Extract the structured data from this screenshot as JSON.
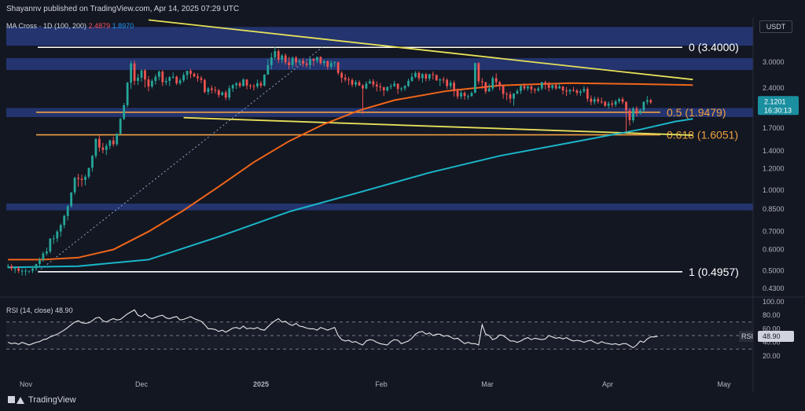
{
  "header": {
    "text": "Shayannv published on TradingView.com, Apr 14, 2025 07:29 UTC",
    "currency": "USDT"
  },
  "legend": {
    "ma_label": "MA Cross · 1D (100, 200)",
    "ma100_value": "2.4879",
    "ma200_value": "1.8970",
    "rsi_label": "RSI (14, close)",
    "rsi_value": "48.90"
  },
  "footer": {
    "brand": "TradingView"
  },
  "colors": {
    "background": "#131722",
    "up": "#26a69a",
    "down": "#ef5350",
    "ma100": "#f0661a",
    "ma200": "#1ab5c8",
    "fib": "#f0a040",
    "trend": "#e6e05a",
    "zone": "#2a3f8a"
  },
  "chart_data": {
    "type": "candlestick",
    "x_labels": [
      "Nov",
      "Dec",
      "2025",
      "Feb",
      "Mar",
      "Apr",
      "May"
    ],
    "y_ticks": [
      "3.0000",
      "2.4000",
      "1.7000",
      "1.4000",
      "1.2000",
      "1.0000",
      "0.8500",
      "0.7000",
      "0.6000",
      "0.5000",
      "0.4300"
    ],
    "y_scale": "log",
    "y_range": [
      0.41,
      4.4
    ],
    "last_price": "2.1201",
    "countdown": "16:30:13",
    "fib_levels": [
      {
        "label": "0 (3.4000)",
        "price": 3.4,
        "color": "white"
      },
      {
        "label": "0.5 (1.9479)",
        "price": 1.9479,
        "color": "orange"
      },
      {
        "label": "0.618 (1.6051)",
        "price": 1.6051,
        "color": "orange"
      },
      {
        "label": "1 (0.4957)",
        "price": 0.4957,
        "color": "white"
      }
    ],
    "fib_price_tags": [
      "1.9479",
      "1.6051"
    ],
    "support_zones": [
      {
        "low": 3.45,
        "high": 4.05
      },
      {
        "low": 2.8,
        "high": 3.1
      },
      {
        "low": 1.87,
        "high": 2.02
      },
      {
        "low": 0.84,
        "high": 0.89
      }
    ],
    "ma100": [
      [
        0,
        0.55
      ],
      [
        10,
        0.55
      ],
      [
        20,
        0.56
      ],
      [
        30,
        0.6
      ],
      [
        40,
        0.7
      ],
      [
        50,
        0.84
      ],
      [
        60,
        1.03
      ],
      [
        70,
        1.27
      ],
      [
        80,
        1.52
      ],
      [
        90,
        1.76
      ],
      [
        100,
        1.98
      ],
      [
        110,
        2.16
      ],
      [
        125,
        2.34
      ],
      [
        140,
        2.45
      ],
      [
        160,
        2.5
      ],
      [
        180,
        2.48
      ],
      [
        195,
        2.46
      ]
    ],
    "ma200": [
      [
        0,
        0.515
      ],
      [
        20,
        0.52
      ],
      [
        40,
        0.55
      ],
      [
        60,
        0.67
      ],
      [
        80,
        0.83
      ],
      [
        100,
        0.98
      ],
      [
        120,
        1.16
      ],
      [
        140,
        1.34
      ],
      [
        160,
        1.5
      ],
      [
        180,
        1.68
      ],
      [
        190,
        1.8
      ],
      [
        195,
        1.84
      ]
    ],
    "trendlines": [
      {
        "from": [
          40,
          4.3
        ],
        "to": [
          195,
          2.58
        ]
      },
      {
        "from": [
          50,
          1.86
        ],
        "to": [
          195,
          1.6
        ]
      }
    ],
    "candles": [
      [
        0.52,
        0.52,
        0.53,
        0.51
      ],
      [
        0.52,
        0.51,
        0.53,
        0.5
      ],
      [
        0.51,
        0.51,
        0.52,
        0.49
      ],
      [
        0.51,
        0.5,
        0.52,
        0.49
      ],
      [
        0.5,
        0.5,
        0.51,
        0.48
      ],
      [
        0.5,
        0.5,
        0.51,
        0.48
      ],
      [
        0.5,
        0.5,
        0.5,
        0.49
      ],
      [
        0.5,
        0.51,
        0.52,
        0.49
      ],
      [
        0.51,
        0.53,
        0.53,
        0.5
      ],
      [
        0.53,
        0.55,
        0.56,
        0.52
      ],
      [
        0.55,
        0.58,
        0.59,
        0.54
      ],
      [
        0.58,
        0.59,
        0.61,
        0.57
      ],
      [
        0.59,
        0.66,
        0.66,
        0.58
      ],
      [
        0.66,
        0.66,
        0.68,
        0.63
      ],
      [
        0.66,
        0.7,
        0.71,
        0.64
      ],
      [
        0.7,
        0.74,
        0.75,
        0.67
      ],
      [
        0.74,
        0.8,
        0.81,
        0.72
      ],
      [
        0.8,
        0.87,
        0.88,
        0.77
      ],
      [
        0.87,
        0.98,
        0.98,
        0.86
      ],
      [
        0.98,
        1.11,
        1.12,
        0.96
      ],
      [
        1.11,
        1.1,
        1.15,
        1.03
      ],
      [
        1.1,
        1.09,
        1.14,
        1.03
      ],
      [
        1.09,
        1.12,
        1.14,
        1.04
      ],
      [
        1.12,
        1.21,
        1.21,
        1.1
      ],
      [
        1.21,
        1.34,
        1.35,
        1.17
      ],
      [
        1.34,
        1.55,
        1.56,
        1.31
      ],
      [
        1.55,
        1.44,
        1.6,
        1.39
      ],
      [
        1.44,
        1.41,
        1.5,
        1.37
      ],
      [
        1.41,
        1.46,
        1.49,
        1.35
      ],
      [
        1.46,
        1.53,
        1.54,
        1.42
      ],
      [
        1.53,
        1.48,
        1.58,
        1.45
      ],
      [
        1.48,
        1.62,
        1.63,
        1.46
      ],
      [
        1.62,
        1.84,
        1.86,
        1.61
      ],
      [
        1.84,
        2.07,
        2.11,
        1.82
      ],
      [
        2.07,
        2.51,
        2.53,
        2.03
      ],
      [
        2.51,
        2.96,
        3.03,
        2.38
      ],
      [
        2.96,
        2.55,
        3.04,
        2.46
      ],
      [
        2.55,
        2.62,
        2.71,
        2.46
      ],
      [
        2.62,
        2.79,
        2.81,
        2.53
      ],
      [
        2.79,
        2.58,
        2.82,
        2.41
      ],
      [
        2.58,
        2.43,
        2.66,
        2.33
      ],
      [
        2.43,
        2.55,
        2.59,
        2.39
      ],
      [
        2.55,
        2.64,
        2.7,
        2.47
      ],
      [
        2.64,
        2.76,
        2.79,
        2.56
      ],
      [
        2.76,
        2.52,
        2.8,
        2.44
      ],
      [
        2.52,
        2.55,
        2.63,
        2.46
      ],
      [
        2.55,
        2.63,
        2.66,
        2.44
      ],
      [
        2.63,
        2.64,
        2.74,
        2.6
      ],
      [
        2.64,
        2.5,
        2.67,
        2.46
      ],
      [
        2.5,
        2.56,
        2.61,
        2.46
      ],
      [
        2.56,
        2.68,
        2.74,
        2.52
      ],
      [
        2.68,
        2.78,
        2.78,
        2.58
      ],
      [
        2.78,
        2.71,
        2.83,
        2.61
      ],
      [
        2.71,
        2.65,
        2.74,
        2.63
      ],
      [
        2.65,
        2.61,
        2.72,
        2.53
      ],
      [
        2.61,
        2.57,
        2.66,
        2.5
      ],
      [
        2.57,
        2.32,
        2.6,
        2.29
      ],
      [
        2.32,
        2.39,
        2.42,
        2.26
      ],
      [
        2.39,
        2.36,
        2.45,
        2.29
      ],
      [
        2.36,
        2.35,
        2.43,
        2.29
      ],
      [
        2.35,
        2.26,
        2.38,
        2.21
      ],
      [
        2.26,
        2.31,
        2.33,
        2.24
      ],
      [
        2.31,
        2.21,
        2.35,
        2.16
      ],
      [
        2.21,
        2.39,
        2.45,
        2.16
      ],
      [
        2.39,
        2.46,
        2.48,
        2.32
      ],
      [
        2.46,
        2.5,
        2.52,
        2.38
      ],
      [
        2.5,
        2.44,
        2.54,
        2.4
      ],
      [
        2.44,
        2.58,
        2.61,
        2.43
      ],
      [
        2.58,
        2.45,
        2.59,
        2.37
      ],
      [
        2.45,
        2.44,
        2.48,
        2.38
      ],
      [
        2.44,
        2.43,
        2.48,
        2.35
      ],
      [
        2.43,
        2.5,
        2.58,
        2.39
      ],
      [
        2.5,
        2.45,
        2.55,
        2.4
      ],
      [
        2.45,
        2.69,
        2.7,
        2.43
      ],
      [
        2.69,
        2.92,
        3.07,
        2.69
      ],
      [
        2.92,
        3.12,
        3.25,
        2.82
      ],
      [
        3.12,
        3.29,
        3.41,
        3.06
      ],
      [
        3.29,
        3.06,
        3.35,
        2.97
      ],
      [
        3.06,
        3.17,
        3.21,
        2.97
      ],
      [
        3.17,
        2.99,
        3.23,
        2.93
      ],
      [
        2.99,
        2.92,
        3.13,
        2.82
      ],
      [
        2.92,
        3.11,
        3.15,
        2.83
      ],
      [
        3.11,
        2.99,
        3.16,
        2.88
      ],
      [
        2.99,
        3.03,
        3.08,
        2.93
      ],
      [
        3.03,
        2.96,
        3.1,
        2.88
      ],
      [
        2.96,
        2.92,
        3.03,
        2.86
      ],
      [
        2.92,
        3.08,
        3.1,
        2.82
      ],
      [
        3.08,
        3.03,
        3.1,
        2.9
      ],
      [
        3.03,
        3.13,
        3.14,
        2.97
      ],
      [
        3.13,
        2.97,
        3.15,
        2.93
      ],
      [
        2.97,
        3.02,
        3.06,
        2.89
      ],
      [
        3.02,
        2.88,
        3.04,
        2.81
      ],
      [
        2.88,
        2.97,
        3.04,
        2.82
      ],
      [
        2.97,
        2.99,
        3.03,
        2.87
      ],
      [
        2.99,
        2.73,
        3.01,
        2.68
      ],
      [
        2.73,
        2.62,
        2.77,
        2.51
      ],
      [
        2.62,
        2.58,
        2.7,
        2.53
      ],
      [
        2.58,
        2.57,
        2.64,
        2.46
      ],
      [
        2.57,
        2.47,
        2.61,
        2.42
      ],
      [
        2.47,
        2.52,
        2.57,
        2.42
      ],
      [
        2.52,
        2.45,
        2.56,
        2.44
      ],
      [
        2.45,
        2.39,
        2.48,
        1.92
      ],
      [
        2.39,
        2.49,
        2.54,
        2.37
      ],
      [
        2.49,
        2.54,
        2.59,
        2.49
      ],
      [
        2.54,
        2.47,
        2.59,
        2.41
      ],
      [
        2.47,
        2.43,
        2.54,
        2.33
      ],
      [
        2.43,
        2.41,
        2.5,
        2.33
      ],
      [
        2.41,
        2.35,
        2.43,
        2.24
      ],
      [
        2.35,
        2.42,
        2.43,
        2.32
      ],
      [
        2.42,
        2.44,
        2.49,
        2.37
      ],
      [
        2.44,
        2.49,
        2.55,
        2.42
      ],
      [
        2.49,
        2.38,
        2.49,
        2.28
      ],
      [
        2.38,
        2.39,
        2.42,
        2.33
      ],
      [
        2.39,
        2.44,
        2.46,
        2.34
      ],
      [
        2.44,
        2.55,
        2.6,
        2.42
      ],
      [
        2.55,
        2.64,
        2.73,
        2.53
      ],
      [
        2.64,
        2.73,
        2.77,
        2.61
      ],
      [
        2.73,
        2.61,
        2.77,
        2.55
      ],
      [
        2.61,
        2.7,
        2.73,
        2.51
      ],
      [
        2.7,
        2.6,
        2.73,
        2.54
      ],
      [
        2.6,
        2.7,
        2.71,
        2.55
      ],
      [
        2.7,
        2.68,
        2.76,
        2.58
      ],
      [
        2.68,
        2.56,
        2.7,
        2.55
      ],
      [
        2.56,
        2.58,
        2.61,
        2.44
      ],
      [
        2.58,
        2.57,
        2.64,
        2.5
      ],
      [
        2.57,
        2.44,
        2.61,
        2.38
      ],
      [
        2.44,
        2.51,
        2.56,
        2.38
      ],
      [
        2.51,
        2.34,
        2.56,
        2.23
      ],
      [
        2.34,
        2.23,
        2.39,
        2.18
      ],
      [
        2.23,
        2.3,
        2.35,
        2.18
      ],
      [
        2.3,
        2.24,
        2.33,
        2.17
      ],
      [
        2.24,
        2.24,
        2.27,
        2.17
      ],
      [
        2.24,
        2.3,
        2.33,
        2.22
      ],
      [
        2.3,
        2.97,
        2.98,
        2.3
      ],
      [
        2.97,
        2.54,
        2.99,
        2.47
      ],
      [
        2.54,
        2.52,
        2.61,
        2.38
      ],
      [
        2.52,
        2.33,
        2.53,
        2.28
      ],
      [
        2.33,
        2.39,
        2.49,
        2.32
      ],
      [
        2.39,
        2.61,
        2.66,
        2.34
      ],
      [
        2.61,
        2.52,
        2.72,
        2.42
      ],
      [
        2.52,
        2.44,
        2.55,
        2.35
      ],
      [
        2.44,
        2.28,
        2.47,
        2.19
      ],
      [
        2.28,
        2.27,
        2.32,
        2.16
      ],
      [
        2.27,
        2.19,
        2.33,
        2.11
      ],
      [
        2.19,
        2.29,
        2.29,
        2.06
      ],
      [
        2.29,
        2.34,
        2.38,
        2.27
      ],
      [
        2.34,
        2.44,
        2.46,
        2.28
      ],
      [
        2.44,
        2.39,
        2.5,
        2.35
      ],
      [
        2.39,
        2.43,
        2.45,
        2.34
      ],
      [
        2.43,
        2.37,
        2.49,
        2.29
      ],
      [
        2.37,
        2.35,
        2.4,
        2.29
      ],
      [
        2.35,
        2.39,
        2.43,
        2.32
      ],
      [
        2.39,
        2.52,
        2.53,
        2.35
      ],
      [
        2.52,
        2.48,
        2.55,
        2.37
      ],
      [
        2.48,
        2.4,
        2.53,
        2.33
      ],
      [
        2.4,
        2.46,
        2.46,
        2.36
      ],
      [
        2.46,
        2.39,
        2.5,
        2.36
      ],
      [
        2.39,
        2.43,
        2.5,
        2.38
      ],
      [
        2.43,
        2.35,
        2.44,
        2.27
      ],
      [
        2.35,
        2.33,
        2.42,
        2.24
      ],
      [
        2.33,
        2.36,
        2.38,
        2.27
      ],
      [
        2.36,
        2.35,
        2.42,
        2.32
      ],
      [
        2.35,
        2.3,
        2.38,
        2.25
      ],
      [
        2.3,
        2.33,
        2.37,
        2.24
      ],
      [
        2.33,
        2.38,
        2.44,
        2.3
      ],
      [
        2.38,
        2.19,
        2.42,
        2.13
      ],
      [
        2.19,
        2.13,
        2.25,
        2.07
      ],
      [
        2.13,
        2.18,
        2.23,
        2.08
      ],
      [
        2.18,
        2.14,
        2.22,
        2.1
      ],
      [
        2.14,
        2.13,
        2.21,
        2.09
      ],
      [
        2.13,
        2.06,
        2.15,
        2.04
      ],
      [
        2.06,
        2.1,
        2.14,
        2.01
      ],
      [
        2.1,
        2.08,
        2.16,
        2.03
      ],
      [
        2.08,
        2.14,
        2.17,
        2.04
      ],
      [
        2.14,
        2.18,
        2.21,
        2.1
      ],
      [
        2.18,
        2.13,
        2.22,
        2.09
      ],
      [
        2.13,
        1.98,
        2.14,
        1.65
      ],
      [
        1.98,
        1.82,
        2.02,
        1.74
      ],
      [
        1.82,
        2.01,
        2.04,
        1.78
      ],
      [
        2.01,
        1.93,
        2.05,
        1.88
      ],
      [
        1.93,
        1.98,
        2.01,
        1.91
      ],
      [
        1.98,
        2.13,
        2.14,
        1.95
      ],
      [
        2.13,
        2.16,
        2.24,
        2.08
      ],
      [
        2.16,
        2.12,
        2.19,
        2.09
      ]
    ],
    "rsi": {
      "label": "RSI (14, close)",
      "value": 48.9,
      "ticks": [
        "100.00",
        "80.00",
        "60.00",
        "40.00",
        "20.00"
      ],
      "levels": [
        70,
        50,
        30
      ],
      "series": [
        40,
        38,
        39,
        37,
        40,
        38,
        36,
        38,
        40,
        41,
        44,
        45,
        48,
        50,
        52,
        55,
        58,
        62,
        66,
        70,
        72,
        69,
        68,
        69,
        72,
        76,
        77,
        72,
        70,
        73,
        75,
        73,
        74,
        78,
        82,
        85,
        88,
        80,
        78,
        82,
        77,
        75,
        77,
        79,
        80,
        76,
        75,
        77,
        78,
        73,
        74,
        76,
        78,
        75,
        73,
        71,
        66,
        60,
        60,
        59,
        56,
        58,
        55,
        58,
        61,
        62,
        60,
        64,
        60,
        61,
        60,
        62,
        59,
        58,
        63,
        68,
        72,
        75,
        70,
        71,
        67,
        65,
        68,
        64,
        63,
        61,
        60,
        60,
        58,
        62,
        60,
        58,
        60,
        62,
        50,
        44,
        42,
        43,
        40,
        41,
        38,
        36,
        42,
        44,
        43,
        40,
        38,
        37,
        36,
        41,
        44,
        43,
        38,
        40,
        42,
        46,
        52,
        55,
        56,
        52,
        54,
        50,
        52,
        52,
        49,
        50,
        48,
        45,
        46,
        42,
        38,
        40,
        38,
        38,
        36,
        66,
        52,
        50,
        44,
        46,
        51,
        50,
        46,
        42,
        42,
        40,
        42,
        45,
        47,
        44,
        46,
        45,
        44,
        45,
        50,
        48,
        46,
        47,
        45,
        47,
        44,
        42,
        43,
        42,
        40,
        42,
        43,
        40,
        38,
        41,
        39,
        38,
        37,
        38,
        36,
        38,
        38,
        35,
        32,
        36,
        42,
        40,
        45,
        48,
        48,
        49
      ]
    }
  }
}
